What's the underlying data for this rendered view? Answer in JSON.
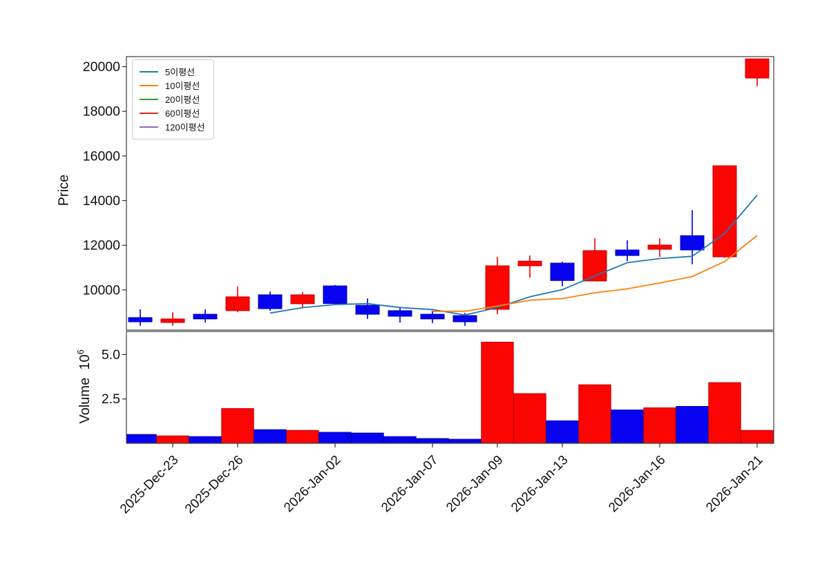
{
  "window": {
    "background": "#ffffff"
  },
  "colors": {
    "up": "#fb0503",
    "up_edge": "#c80000",
    "down": "#0703f0",
    "down_edge": "#0000b4",
    "spine": "#4a4a4a",
    "tick": "#2a2a2a",
    "text": "#111111"
  },
  "legend": {
    "items": [
      {
        "label": "5이평선",
        "color": "#1f77b4"
      },
      {
        "label": "10이평선",
        "color": "#ff7f0e"
      },
      {
        "label": "20이평선",
        "color": "#2ca02c"
      },
      {
        "label": "60이평선",
        "color": "#d62728"
      },
      {
        "label": "120이평선",
        "color": "#9467bd"
      }
    ]
  },
  "axes": {
    "price": {
      "label": "Price",
      "tick_values": [
        10000,
        12000,
        14000,
        16000,
        18000,
        20000
      ],
      "tick_labels": [
        "10000",
        "12000",
        "14000",
        "16000",
        "18000",
        "20000"
      ],
      "ylim": [
        8200,
        20450
      ]
    },
    "volume": {
      "label": "Volume",
      "unit_base": "10",
      "unit_exponent": "6",
      "tick_values_millions": [
        2.5,
        5.0
      ],
      "tick_labels": [
        "2.5",
        "5.0"
      ],
      "ylim_millions": [
        0,
        6.3
      ]
    },
    "x": {
      "tick_indices": [
        1,
        3,
        6,
        9,
        11,
        13,
        16,
        19
      ],
      "tick_labels": [
        "2025-Dec-23",
        "2025-Dec-26",
        "2026-Jan-02",
        "2026-Jan-07",
        "2026-Jan-09",
        "2026-Jan-13",
        "2026-Jan-16",
        "2026-Jan-21"
      ]
    }
  },
  "chart_data": [
    {
      "type": "candlestick",
      "panel": "price",
      "ylabel": "Price",
      "ylim": [
        8200,
        20450
      ],
      "legend_position": "upper left",
      "grid": false,
      "up_means": "close >= open (red)",
      "down_means": "close < open (blue)",
      "candles": [
        {
          "open": 8760,
          "high": 9130,
          "low": 8390,
          "close": 8570,
          "direction": "down"
        },
        {
          "open": 8540,
          "high": 9000,
          "low": 8390,
          "close": 8700,
          "direction": "up"
        },
        {
          "open": 8910,
          "high": 9130,
          "low": 8540,
          "close": 8700,
          "direction": "down"
        },
        {
          "open": 9070,
          "high": 10150,
          "low": 9000,
          "close": 9690,
          "direction": "up"
        },
        {
          "open": 9780,
          "high": 9930,
          "low": 9070,
          "close": 9160,
          "direction": "down"
        },
        {
          "open": 9380,
          "high": 9900,
          "low": 9220,
          "close": 9780,
          "direction": "up"
        },
        {
          "open": 10180,
          "high": 10220,
          "low": 9320,
          "close": 9390,
          "direction": "down"
        },
        {
          "open": 9310,
          "high": 9620,
          "low": 8700,
          "close": 8910,
          "direction": "down"
        },
        {
          "open": 9070,
          "high": 9220,
          "low": 8540,
          "close": 8820,
          "direction": "down"
        },
        {
          "open": 8910,
          "high": 9070,
          "low": 8510,
          "close": 8700,
          "direction": "down"
        },
        {
          "open": 8850,
          "high": 8970,
          "low": 8390,
          "close": 8570,
          "direction": "down"
        },
        {
          "open": 9130,
          "high": 11480,
          "low": 8910,
          "close": 11080,
          "direction": "up"
        },
        {
          "open": 11080,
          "high": 11540,
          "low": 10550,
          "close": 11290,
          "direction": "up"
        },
        {
          "open": 11200,
          "high": 11260,
          "low": 10160,
          "close": 10420,
          "direction": "down"
        },
        {
          "open": 10400,
          "high": 12310,
          "low": 10400,
          "close": 11760,
          "direction": "up"
        },
        {
          "open": 11790,
          "high": 12220,
          "low": 11290,
          "close": 11540,
          "direction": "down"
        },
        {
          "open": 11820,
          "high": 12310,
          "low": 11480,
          "close": 12010,
          "direction": "up"
        },
        {
          "open": 12430,
          "high": 13570,
          "low": 11150,
          "close": 11790,
          "direction": "down"
        },
        {
          "open": 11480,
          "high": 15560,
          "low": 11440,
          "close": 15560,
          "direction": "up"
        },
        {
          "open": 19490,
          "high": 20350,
          "low": 19120,
          "close": 20350,
          "direction": "up"
        }
      ],
      "series": [
        {
          "id": "ma5",
          "name": "5이평선",
          "color": "#1f77b4",
          "start_index": 4,
          "values": [
            8964,
            9206,
            9344,
            9386,
            9212,
            9120,
            8878,
            9216,
            9692,
            10012,
            10624,
            11218,
            11404,
            11504,
            12532,
            14250
          ]
        },
        {
          "id": "ma10",
          "name": "10이평선",
          "color": "#ff7f0e",
          "start_index": 9,
          "values": [
            9042,
            9042,
            9280,
            9539,
            9612,
            9872,
            10048,
            10310,
            10598,
            11272,
            12437
          ]
        },
        {
          "id": "ma20",
          "name": "20이평선",
          "color": "#2ca02c",
          "start_index": 0,
          "values": []
        },
        {
          "id": "ma60",
          "name": "60이평선",
          "color": "#d62728",
          "start_index": 0,
          "values": []
        },
        {
          "id": "ma120",
          "name": "120이평선",
          "color": "#9467bd",
          "start_index": 0,
          "values": []
        }
      ]
    },
    {
      "type": "bar",
      "panel": "volume",
      "ylabel": "Volume 10^6",
      "ylim_millions": [
        0,
        6.3
      ],
      "values_millions": [
        0.5,
        0.42,
        0.38,
        1.96,
        0.77,
        0.73,
        0.62,
        0.58,
        0.38,
        0.27,
        0.23,
        5.7,
        2.8,
        1.27,
        3.3,
        1.88,
        2.0,
        2.08,
        3.42,
        0.73
      ],
      "directions": [
        "down",
        "up",
        "down",
        "up",
        "down",
        "up",
        "down",
        "down",
        "down",
        "down",
        "down",
        "up",
        "up",
        "down",
        "up",
        "down",
        "up",
        "down",
        "up",
        "up"
      ]
    }
  ]
}
